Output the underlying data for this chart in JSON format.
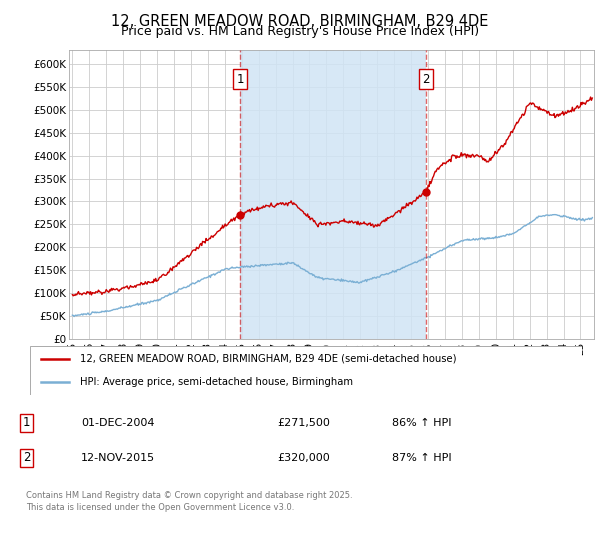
{
  "title": "12, GREEN MEADOW ROAD, BIRMINGHAM, B29 4DE",
  "subtitle": "Price paid vs. HM Land Registry's House Price Index (HPI)",
  "ylabel_ticks": [
    "£0",
    "£50K",
    "£100K",
    "£150K",
    "£200K",
    "£250K",
    "£300K",
    "£350K",
    "£400K",
    "£450K",
    "£500K",
    "£550K",
    "£600K"
  ],
  "ytick_values": [
    0,
    50000,
    100000,
    150000,
    200000,
    250000,
    300000,
    350000,
    400000,
    450000,
    500000,
    550000,
    600000
  ],
  "ylim": [
    0,
    630000
  ],
  "xlim_start": 1994.8,
  "xlim_end": 2025.8,
  "xtick_years": [
    1995,
    1996,
    1997,
    1998,
    1999,
    2000,
    2001,
    2002,
    2003,
    2004,
    2005,
    2006,
    2007,
    2008,
    2009,
    2010,
    2011,
    2012,
    2013,
    2014,
    2015,
    2016,
    2017,
    2018,
    2019,
    2020,
    2021,
    2022,
    2023,
    2024,
    2025
  ],
  "red_line_color": "#cc0000",
  "blue_line_color": "#7aafd4",
  "shade_color": "#d0e4f5",
  "vline_color": "#cc0000",
  "vline_alpha": 0.6,
  "vline_style": "--",
  "marker1_x": 2004.917,
  "marker1_y": 271500,
  "marker2_x": 2015.875,
  "marker2_y": 320000,
  "legend_label_red": "12, GREEN MEADOW ROAD, BIRMINGHAM, B29 4DE (semi-detached house)",
  "legend_label_blue": "HPI: Average price, semi-detached house, Birmingham",
  "annotation1_label": "1",
  "annotation1_date": "01-DEC-2004",
  "annotation1_price": "£271,500",
  "annotation1_hpi": "86% ↑ HPI",
  "annotation2_label": "2",
  "annotation2_date": "12-NOV-2015",
  "annotation2_price": "£320,000",
  "annotation2_hpi": "87% ↑ HPI",
  "footer_text": "Contains HM Land Registry data © Crown copyright and database right 2025.\nThis data is licensed under the Open Government Licence v3.0.",
  "background_color": "#ffffff",
  "plot_bg_color": "#ffffff",
  "grid_color": "#cccccc",
  "title_fontsize": 10.5,
  "subtitle_fontsize": 9
}
